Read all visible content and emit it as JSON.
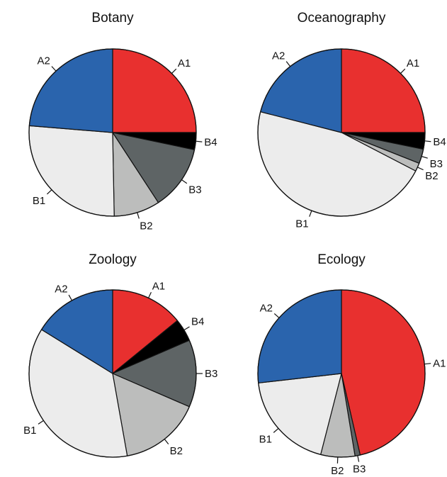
{
  "chart_data": [
    {
      "type": "pie",
      "title": "Botany",
      "categories": [
        "A1",
        "B4",
        "B3",
        "B2",
        "B1",
        "A2"
      ],
      "values": [
        25,
        3.3,
        12.5,
        8.9,
        26.6,
        23.7
      ],
      "colors": [
        "#e8302f",
        "#000000",
        "#5e6465",
        "#bcbdbc",
        "#ececec",
        "#2a64ad"
      ]
    },
    {
      "type": "pie",
      "title": "Oceanography",
      "categories": [
        "A1",
        "B4",
        "B3",
        "B2",
        "B1",
        "A2"
      ],
      "values": [
        25,
        3.2,
        2.8,
        1.6,
        46.4,
        21.0
      ],
      "colors": [
        "#e8302f",
        "#000000",
        "#5e6465",
        "#bcbdbc",
        "#ececec",
        "#2a64ad"
      ]
    },
    {
      "type": "pie",
      "title": "Zoology",
      "categories": [
        "A1",
        "B4",
        "B3",
        "B2",
        "B1",
        "A2"
      ],
      "values": [
        14.1,
        4.4,
        13.0,
        15.7,
        36.6,
        16.2
      ],
      "colors": [
        "#e8302f",
        "#000000",
        "#5e6465",
        "#bcbdbc",
        "#ececec",
        "#2a64ad"
      ]
    },
    {
      "type": "pie",
      "title": "Ecology",
      "categories": [
        "A1",
        "B3",
        "B2",
        "B1",
        "A2"
      ],
      "values": [
        46.4,
        1.0,
        6.6,
        19.2,
        26.8
      ],
      "colors": [
        "#e8302f",
        "#5e6465",
        "#bcbdbc",
        "#ececec",
        "#2a64ad"
      ]
    }
  ]
}
